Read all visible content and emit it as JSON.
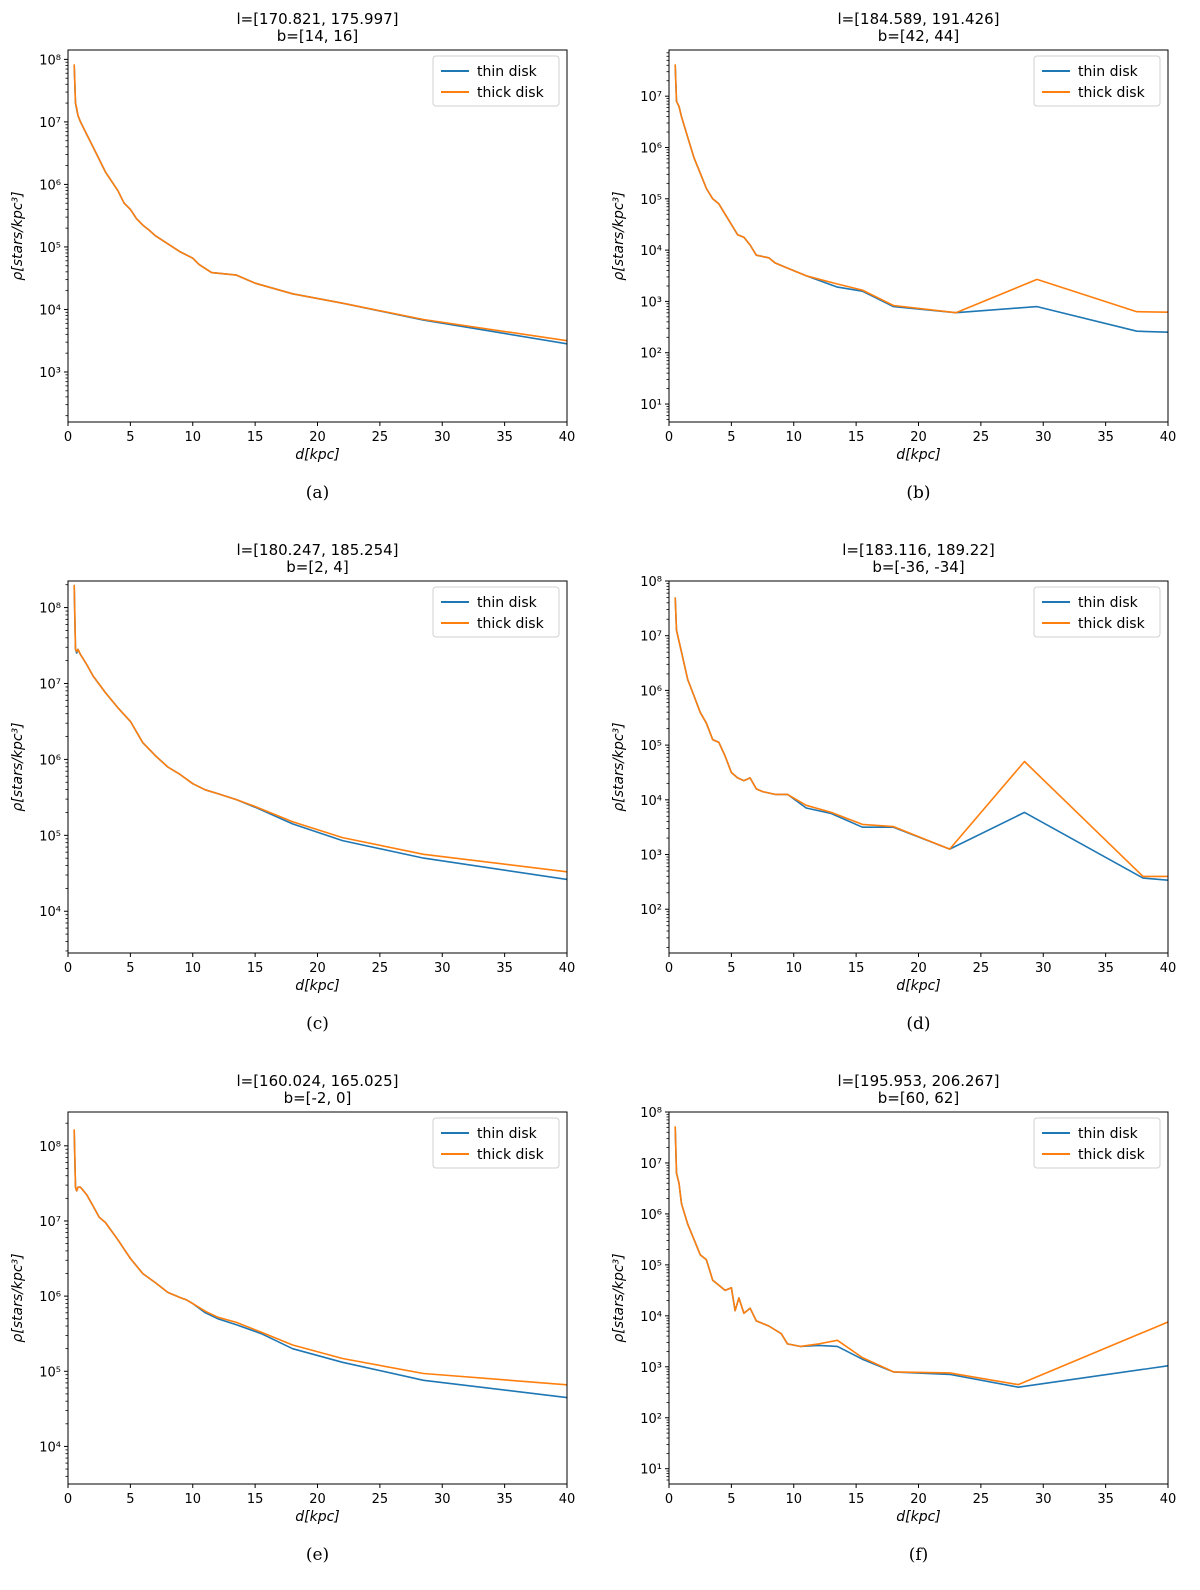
{
  "chart_data": [
    {
      "type": "line",
      "panel_label": "(a)",
      "title": [
        "l=[170.821, 175.997]",
        "b=[14, 16]"
      ],
      "xlabel": "d[kpc]",
      "ylabel": "ρ[stars/kpc³]",
      "xlim": [
        0,
        40
      ],
      "ylim_log10": [
        2.2,
        8.15
      ],
      "xticks": [
        0,
        5,
        10,
        15,
        20,
        25,
        30,
        35,
        40
      ],
      "yticks": [
        {
          "exp": 3,
          "label": "10³"
        },
        {
          "exp": 4,
          "label": "10⁴"
        },
        {
          "exp": 5,
          "label": "10⁵"
        },
        {
          "exp": 6,
          "label": "10⁶"
        },
        {
          "exp": 7,
          "label": "10⁷"
        },
        {
          "exp": 8,
          "label": "10⁸"
        }
      ],
      "legend": {
        "position": "top-right",
        "entries": [
          "thin disk",
          "thick disk"
        ]
      },
      "series": [
        {
          "name": "thin disk",
          "color": "#1f77b4",
          "x": [
            0.5,
            0.6,
            0.7,
            0.8,
            1.0,
            1.5,
            2.0,
            2.5,
            3.0,
            4.0,
            4.5,
            5.0,
            5.5,
            6.0,
            6.5,
            7.0,
            8.0,
            9.0,
            10.0,
            10.5,
            11.5,
            13.5,
            15.0,
            18.0,
            22.0,
            28.5,
            40.0
          ],
          "y": [
            7.9,
            7.3,
            7.2,
            7.1,
            7.0,
            6.8,
            6.6,
            6.4,
            6.2,
            5.9,
            5.7,
            5.6,
            5.45,
            5.35,
            5.27,
            5.18,
            5.05,
            4.92,
            4.82,
            4.72,
            4.59,
            4.55,
            4.42,
            4.25,
            4.1,
            3.83,
            3.45
          ]
        },
        {
          "name": "thick disk",
          "color": "#ff7f0e",
          "x": [
            0.5,
            0.6,
            0.7,
            0.8,
            1.0,
            1.5,
            2.0,
            2.5,
            3.0,
            4.0,
            4.5,
            5.0,
            5.5,
            6.0,
            6.5,
            7.0,
            8.0,
            9.0,
            10.0,
            10.5,
            11.5,
            13.5,
            15.0,
            18.0,
            22.0,
            28.5,
            40.0
          ],
          "y": [
            7.92,
            7.3,
            7.22,
            7.1,
            7.0,
            6.8,
            6.6,
            6.4,
            6.2,
            5.9,
            5.7,
            5.6,
            5.45,
            5.35,
            5.27,
            5.18,
            5.05,
            4.92,
            4.82,
            4.72,
            4.59,
            4.55,
            4.42,
            4.25,
            4.1,
            3.84,
            3.5
          ]
        }
      ]
    },
    {
      "type": "line",
      "panel_label": "(b)",
      "title": [
        "l=[184.589, 191.426]",
        "b=[42, 44]"
      ],
      "xlabel": "d[kpc]",
      "ylabel": "ρ[stars/kpc³]",
      "xlim": [
        0,
        40
      ],
      "ylim_log10": [
        0.65,
        7.9
      ],
      "xticks": [
        0,
        5,
        10,
        15,
        20,
        25,
        30,
        35,
        40
      ],
      "yticks": [
        {
          "exp": 1,
          "label": "10¹"
        },
        {
          "exp": 2,
          "label": "10²"
        },
        {
          "exp": 3,
          "label": "10³"
        },
        {
          "exp": 4,
          "label": "10⁴"
        },
        {
          "exp": 5,
          "label": "10⁵"
        },
        {
          "exp": 6,
          "label": "10⁶"
        },
        {
          "exp": 7,
          "label": "10⁷"
        }
      ],
      "legend": {
        "position": "top-right",
        "entries": [
          "thin disk",
          "thick disk"
        ]
      },
      "series": [
        {
          "name": "thin disk",
          "color": "#1f77b4",
          "x": [
            0.5,
            0.6,
            0.8,
            1.0,
            1.5,
            2.0,
            2.5,
            3.0,
            3.5,
            4.0,
            4.5,
            5.0,
            5.5,
            6.0,
            6.5,
            7.0,
            8.0,
            8.5,
            9.5,
            11.0,
            13.5,
            15.5,
            18.0,
            23.0,
            29.5,
            37.5,
            40.0
          ],
          "y": [
            7.6,
            6.9,
            6.8,
            6.6,
            6.2,
            5.8,
            5.5,
            5.2,
            5.0,
            4.9,
            4.7,
            4.5,
            4.3,
            4.25,
            4.1,
            3.9,
            3.85,
            3.75,
            3.65,
            3.5,
            3.28,
            3.2,
            2.9,
            2.78,
            2.9,
            2.42,
            2.4
          ]
        },
        {
          "name": "thick disk",
          "color": "#ff7f0e",
          "x": [
            0.5,
            0.6,
            0.8,
            1.0,
            1.5,
            2.0,
            2.5,
            3.0,
            3.5,
            4.0,
            4.5,
            5.0,
            5.5,
            6.0,
            6.5,
            7.0,
            8.0,
            8.5,
            9.5,
            11.0,
            13.5,
            15.5,
            18.0,
            23.0,
            29.5,
            37.5,
            40.0
          ],
          "y": [
            7.62,
            6.9,
            6.8,
            6.6,
            6.2,
            5.8,
            5.5,
            5.2,
            5.0,
            4.9,
            4.7,
            4.5,
            4.3,
            4.25,
            4.1,
            3.9,
            3.85,
            3.75,
            3.65,
            3.5,
            3.34,
            3.22,
            2.92,
            2.78,
            3.43,
            2.8,
            2.79
          ]
        }
      ]
    },
    {
      "type": "line",
      "panel_label": "(c)",
      "title": [
        "l=[180.247, 185.254]",
        "b=[2, 4]"
      ],
      "xlabel": "d[kpc]",
      "ylabel": "ρ[stars/kpc³]",
      "xlim": [
        0,
        40
      ],
      "ylim_log10": [
        3.45,
        8.35
      ],
      "xticks": [
        0,
        5,
        10,
        15,
        20,
        25,
        30,
        35,
        40
      ],
      "yticks": [
        {
          "exp": 4,
          "label": "10⁴"
        },
        {
          "exp": 5,
          "label": "10⁵"
        },
        {
          "exp": 6,
          "label": "10⁶"
        },
        {
          "exp": 7,
          "label": "10⁷"
        },
        {
          "exp": 8,
          "label": "10⁸"
        }
      ],
      "legend": {
        "position": "top-right",
        "entries": [
          "thin disk",
          "thick disk"
        ]
      },
      "series": [
        {
          "name": "thin disk",
          "color": "#1f77b4",
          "x": [
            0.5,
            0.6,
            0.7,
            0.8,
            1.0,
            1.5,
            2.0,
            3.0,
            4.0,
            5.0,
            6.0,
            7.0,
            8.0,
            9.0,
            10.0,
            11.0,
            12.0,
            13.5,
            15.0,
            18.0,
            22.0,
            28.5,
            40.0
          ],
          "y": [
            8.28,
            7.45,
            7.4,
            7.45,
            7.38,
            7.25,
            7.1,
            6.88,
            6.68,
            6.5,
            6.22,
            6.05,
            5.9,
            5.8,
            5.68,
            5.6,
            5.55,
            5.47,
            5.37,
            5.15,
            4.93,
            4.7,
            4.42
          ]
        },
        {
          "name": "thick disk",
          "color": "#ff7f0e",
          "x": [
            0.5,
            0.6,
            0.7,
            0.8,
            1.0,
            1.5,
            2.0,
            3.0,
            4.0,
            5.0,
            6.0,
            7.0,
            8.0,
            9.0,
            10.0,
            11.0,
            12.0,
            13.5,
            15.0,
            18.0,
            22.0,
            28.5,
            40.0
          ],
          "y": [
            8.3,
            7.45,
            7.42,
            7.45,
            7.38,
            7.25,
            7.1,
            6.88,
            6.68,
            6.5,
            6.22,
            6.05,
            5.9,
            5.8,
            5.68,
            5.6,
            5.55,
            5.47,
            5.38,
            5.18,
            4.97,
            4.75,
            4.52
          ]
        }
      ]
    },
    {
      "type": "line",
      "panel_label": "(d)",
      "title": [
        "l=[183.116, 189.22]",
        "b=[-36, -34]"
      ],
      "xlabel": "d[kpc]",
      "ylabel": "ρ[stars/kpc³]",
      "xlim": [
        0,
        40
      ],
      "ylim_log10": [
        1.2,
        8.0
      ],
      "xticks": [
        0,
        5,
        10,
        15,
        20,
        25,
        30,
        35,
        40
      ],
      "yticks": [
        {
          "exp": 2,
          "label": "10²"
        },
        {
          "exp": 3,
          "label": "10³"
        },
        {
          "exp": 4,
          "label": "10⁴"
        },
        {
          "exp": 5,
          "label": "10⁵"
        },
        {
          "exp": 6,
          "label": "10⁶"
        },
        {
          "exp": 7,
          "label": "10⁷"
        },
        {
          "exp": 8,
          "label": "10⁸"
        }
      ],
      "legend": {
        "position": "top-right",
        "entries": [
          "thin disk",
          "thick disk"
        ]
      },
      "series": [
        {
          "name": "thin disk",
          "color": "#1f77b4",
          "x": [
            0.5,
            0.6,
            0.8,
            1.0,
            1.5,
            2.0,
            2.5,
            3.0,
            3.5,
            4.0,
            4.5,
            5.0,
            5.5,
            6.0,
            6.5,
            7.0,
            7.5,
            8.5,
            9.5,
            11.0,
            13.0,
            15.5,
            18.0,
            22.5,
            28.5,
            38.0,
            40.0
          ],
          "y": [
            7.7,
            7.1,
            6.9,
            6.7,
            6.2,
            5.9,
            5.6,
            5.4,
            5.1,
            5.05,
            4.8,
            4.5,
            4.4,
            4.35,
            4.4,
            4.2,
            4.15,
            4.1,
            4.1,
            3.85,
            3.75,
            3.5,
            3.5,
            3.1,
            3.77,
            2.57,
            2.53
          ]
        },
        {
          "name": "thick disk",
          "color": "#ff7f0e",
          "x": [
            0.5,
            0.6,
            0.8,
            1.0,
            1.5,
            2.0,
            2.5,
            3.0,
            3.5,
            4.0,
            4.5,
            5.0,
            5.5,
            6.0,
            6.5,
            7.0,
            7.5,
            8.5,
            9.5,
            11.0,
            13.0,
            15.5,
            18.0,
            22.5,
            28.5,
            38.0,
            40.0
          ],
          "y": [
            7.7,
            7.1,
            6.9,
            6.7,
            6.2,
            5.9,
            5.6,
            5.4,
            5.1,
            5.05,
            4.8,
            4.5,
            4.4,
            4.35,
            4.4,
            4.2,
            4.15,
            4.1,
            4.1,
            3.9,
            3.77,
            3.55,
            3.51,
            3.1,
            4.7,
            2.6,
            2.6
          ]
        }
      ]
    },
    {
      "type": "line",
      "panel_label": "(e)",
      "title": [
        "l=[160.024, 165.025]",
        "b=[-2, 0]"
      ],
      "xlabel": "d[kpc]",
      "ylabel": "ρ[stars/kpc³]",
      "xlim": [
        0,
        40
      ],
      "ylim_log10": [
        3.5,
        8.45
      ],
      "xticks": [
        0,
        5,
        10,
        15,
        20,
        25,
        30,
        35,
        40
      ],
      "yticks": [
        {
          "exp": 4,
          "label": "10⁴"
        },
        {
          "exp": 5,
          "label": "10⁵"
        },
        {
          "exp": 6,
          "label": "10⁶"
        },
        {
          "exp": 7,
          "label": "10⁷"
        },
        {
          "exp": 8,
          "label": "10⁸"
        }
      ],
      "legend": {
        "position": "top-right",
        "entries": [
          "thin disk",
          "thick disk"
        ]
      },
      "series": [
        {
          "name": "thin disk",
          "color": "#1f77b4",
          "x": [
            0.5,
            0.6,
            0.7,
            0.8,
            1.0,
            1.5,
            2.0,
            2.5,
            3.0,
            4.0,
            5.0,
            6.0,
            7.0,
            8.0,
            9.0,
            9.5,
            10.0,
            11.0,
            12.0,
            13.5,
            15.5,
            18.0,
            22.0,
            28.5,
            40.0
          ],
          "y": [
            8.2,
            7.45,
            7.4,
            7.45,
            7.45,
            7.35,
            7.2,
            7.05,
            6.98,
            6.75,
            6.5,
            6.3,
            6.18,
            6.05,
            5.98,
            5.95,
            5.9,
            5.78,
            5.7,
            5.62,
            5.5,
            5.3,
            5.12,
            4.88,
            4.65
          ]
        },
        {
          "name": "thick disk",
          "color": "#ff7f0e",
          "x": [
            0.5,
            0.6,
            0.7,
            0.8,
            1.0,
            1.5,
            2.0,
            2.5,
            3.0,
            4.0,
            5.0,
            6.0,
            7.0,
            8.0,
            9.0,
            9.5,
            10.0,
            11.0,
            12.0,
            13.5,
            15.5,
            18.0,
            22.0,
            28.5,
            40.0
          ],
          "y": [
            8.22,
            7.45,
            7.4,
            7.45,
            7.45,
            7.35,
            7.2,
            7.05,
            6.98,
            6.75,
            6.5,
            6.3,
            6.18,
            6.05,
            5.98,
            5.95,
            5.9,
            5.8,
            5.72,
            5.65,
            5.52,
            5.35,
            5.17,
            4.97,
            4.82
          ]
        }
      ]
    },
    {
      "type": "line",
      "panel_label": "(f)",
      "title": [
        "l=[195.953, 206.267]",
        "b=[60, 62]"
      ],
      "xlabel": "d[kpc]",
      "ylabel": "ρ[stars/kpc³]",
      "xlim": [
        0,
        40
      ],
      "ylim_log10": [
        0.7,
        8.0
      ],
      "xticks": [
        0,
        5,
        10,
        15,
        20,
        25,
        30,
        35,
        40
      ],
      "yticks": [
        {
          "exp": 1,
          "label": "10¹"
        },
        {
          "exp": 2,
          "label": "10²"
        },
        {
          "exp": 3,
          "label": "10³"
        },
        {
          "exp": 4,
          "label": "10⁴"
        },
        {
          "exp": 5,
          "label": "10⁵"
        },
        {
          "exp": 6,
          "label": "10⁶"
        },
        {
          "exp": 7,
          "label": "10⁷"
        },
        {
          "exp": 8,
          "label": "10⁸"
        }
      ],
      "legend": {
        "position": "top-right",
        "entries": [
          "thin disk",
          "thick disk"
        ]
      },
      "series": [
        {
          "name": "thin disk",
          "color": "#1f77b4",
          "x": [
            0.5,
            0.6,
            0.8,
            1.0,
            1.5,
            2.0,
            2.5,
            3.0,
            3.5,
            4.0,
            4.5,
            5.0,
            5.3,
            5.6,
            6.0,
            6.5,
            7.0,
            8.0,
            9.0,
            9.5,
            10.5,
            12.0,
            13.5,
            15.5,
            18.0,
            22.5,
            28.0,
            40.0
          ],
          "y": [
            7.7,
            6.8,
            6.6,
            6.2,
            5.8,
            5.5,
            5.2,
            5.1,
            4.7,
            4.6,
            4.5,
            4.55,
            4.1,
            4.35,
            4.05,
            4.15,
            3.9,
            3.8,
            3.65,
            3.45,
            3.4,
            3.42,
            3.4,
            3.15,
            2.9,
            2.85,
            2.6,
            3.02
          ]
        },
        {
          "name": "thick disk",
          "color": "#ff7f0e",
          "x": [
            0.5,
            0.6,
            0.8,
            1.0,
            1.5,
            2.0,
            2.5,
            3.0,
            3.5,
            4.0,
            4.5,
            5.0,
            5.3,
            5.6,
            6.0,
            6.5,
            7.0,
            8.0,
            9.0,
            9.5,
            10.5,
            12.0,
            13.5,
            15.5,
            18.0,
            22.5,
            28.0,
            40.0
          ],
          "y": [
            7.72,
            6.8,
            6.6,
            6.2,
            5.8,
            5.5,
            5.2,
            5.1,
            4.7,
            4.6,
            4.5,
            4.55,
            4.1,
            4.35,
            4.05,
            4.15,
            3.9,
            3.8,
            3.65,
            3.45,
            3.4,
            3.45,
            3.52,
            3.18,
            2.9,
            2.88,
            2.65,
            3.88
          ]
        }
      ]
    }
  ]
}
